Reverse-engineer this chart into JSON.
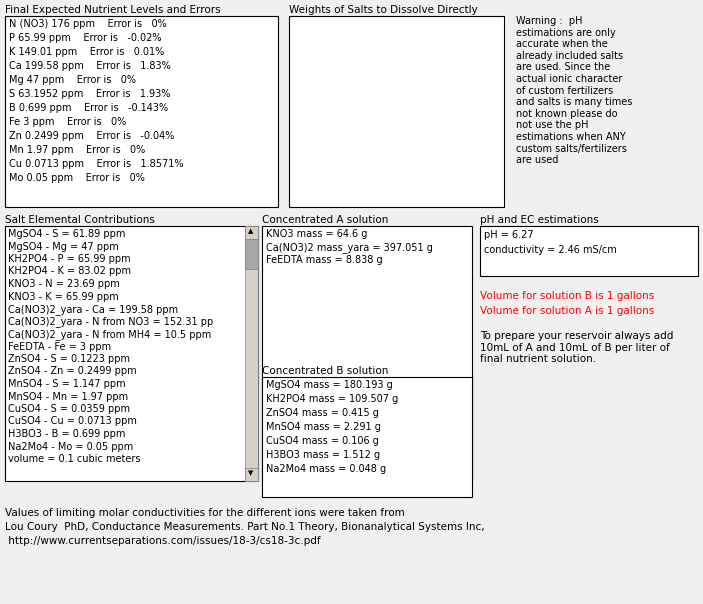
{
  "bg_color": "#f0f0f0",
  "section1_title": "Final Expected Nutrient Levels and Errors",
  "section1_lines": [
    "N (NO3) 176 ppm    Error is   0%",
    "P 65.99 ppm    Error is   -0.02%",
    "K 149.01 ppm    Error is   0.01%",
    "Ca 199.58 ppm    Error is   1.83%",
    "Mg 47 ppm    Error is   0%",
    "S 63.1952 ppm    Error is   1.93%",
    "B 0.699 ppm    Error is   -0.143%",
    "Fe 3 ppm    Error is   0%",
    "Zn 0.2499 ppm    Error is   -0.04%",
    "Mn 1.97 ppm    Error is   0%",
    "Cu 0.0713 ppm    Error is   1.8571%",
    "Mo 0.05 ppm    Error is   0%"
  ],
  "section2_title": "Weights of Salts to Dissolve Directly",
  "warning_text": "Warning :  pH\nestimations are only\naccurate when the\nalready included salts\nare used. Since the\nactual ionic character\nof custom fertilizers\nand salts is many times\nnot known please do\nnot use the pH\nestimations when ANY\ncustom salts/fertilizers\nare used",
  "section3_title": "Salt Elemental Contributions",
  "section3_lines": [
    "MgSO4 - S = 61.89 ppm",
    "MgSO4 - Mg = 47 ppm",
    "KH2PO4 - P = 65.99 ppm",
    "KH2PO4 - K = 83.02 ppm",
    "KNO3 - N = 23.69 ppm",
    "KNO3 - K = 65.99 ppm",
    "Ca(NO3)2_yara - Ca = 199.58 ppm",
    "Ca(NO3)2_yara - N from NO3 = 152.31 pp",
    "Ca(NO3)2_yara - N from MH4 = 10.5 ppm",
    "FeEDTA - Fe = 3 ppm",
    "ZnSO4 - S = 0.1223 ppm",
    "ZnSO4 - Zn = 0.2499 ppm",
    "MnSO4 - S = 1.147 ppm",
    "MnSO4 - Mn = 1.97 ppm",
    "CuSO4 - S = 0.0359 ppm",
    "CuSO4 - Cu = 0.0713 ppm",
    "H3BO3 - B = 0.699 ppm",
    "Na2Mo4 - Mo = 0.05 ppm",
    "volume = 0.1 cubic meters"
  ],
  "section4_title": "Concentrated A solution",
  "section4_lines": [
    "KNO3 mass = 64.6 g",
    "Ca(NO3)2 mass_yara = 397.051 g",
    "FeEDTA mass = 8.838 g"
  ],
  "section5_title": "pH and EC estimations",
  "section5_lines": [
    "pH = 6.27",
    "conductivity = 2.46 mS/cm"
  ],
  "section6_title": "Concentrated B solution",
  "section6_lines": [
    "MgSO4 mass = 180.193 g",
    "KH2PO4 mass = 109.507 g",
    "ZnSO4 mass = 0.415 g",
    "MnSO4 mass = 2.291 g",
    "CuSO4 mass = 0.106 g",
    "H3BO3 mass = 1.512 g",
    "Na2Mo4 mass = 0.048 g"
  ],
  "red_lines": [
    "Volume for solution B is 1 gallons",
    "Volume for solution A is 1 gallons"
  ],
  "bottom_note": "To prepare your reservoir always add\n10mL of A and 10mL of B per liter of\nfinal nutrient solution.",
  "footer_lines": [
    "Values of limiting molar conductivities for the different ions were taken from",
    "Lou Coury  PhD, Conductance Measurements. Part No.1 Theory, Bionanalytical Systems Inc,",
    " http://www.currentseparations.com/issues/18-3/cs18-3c.pdf"
  ]
}
